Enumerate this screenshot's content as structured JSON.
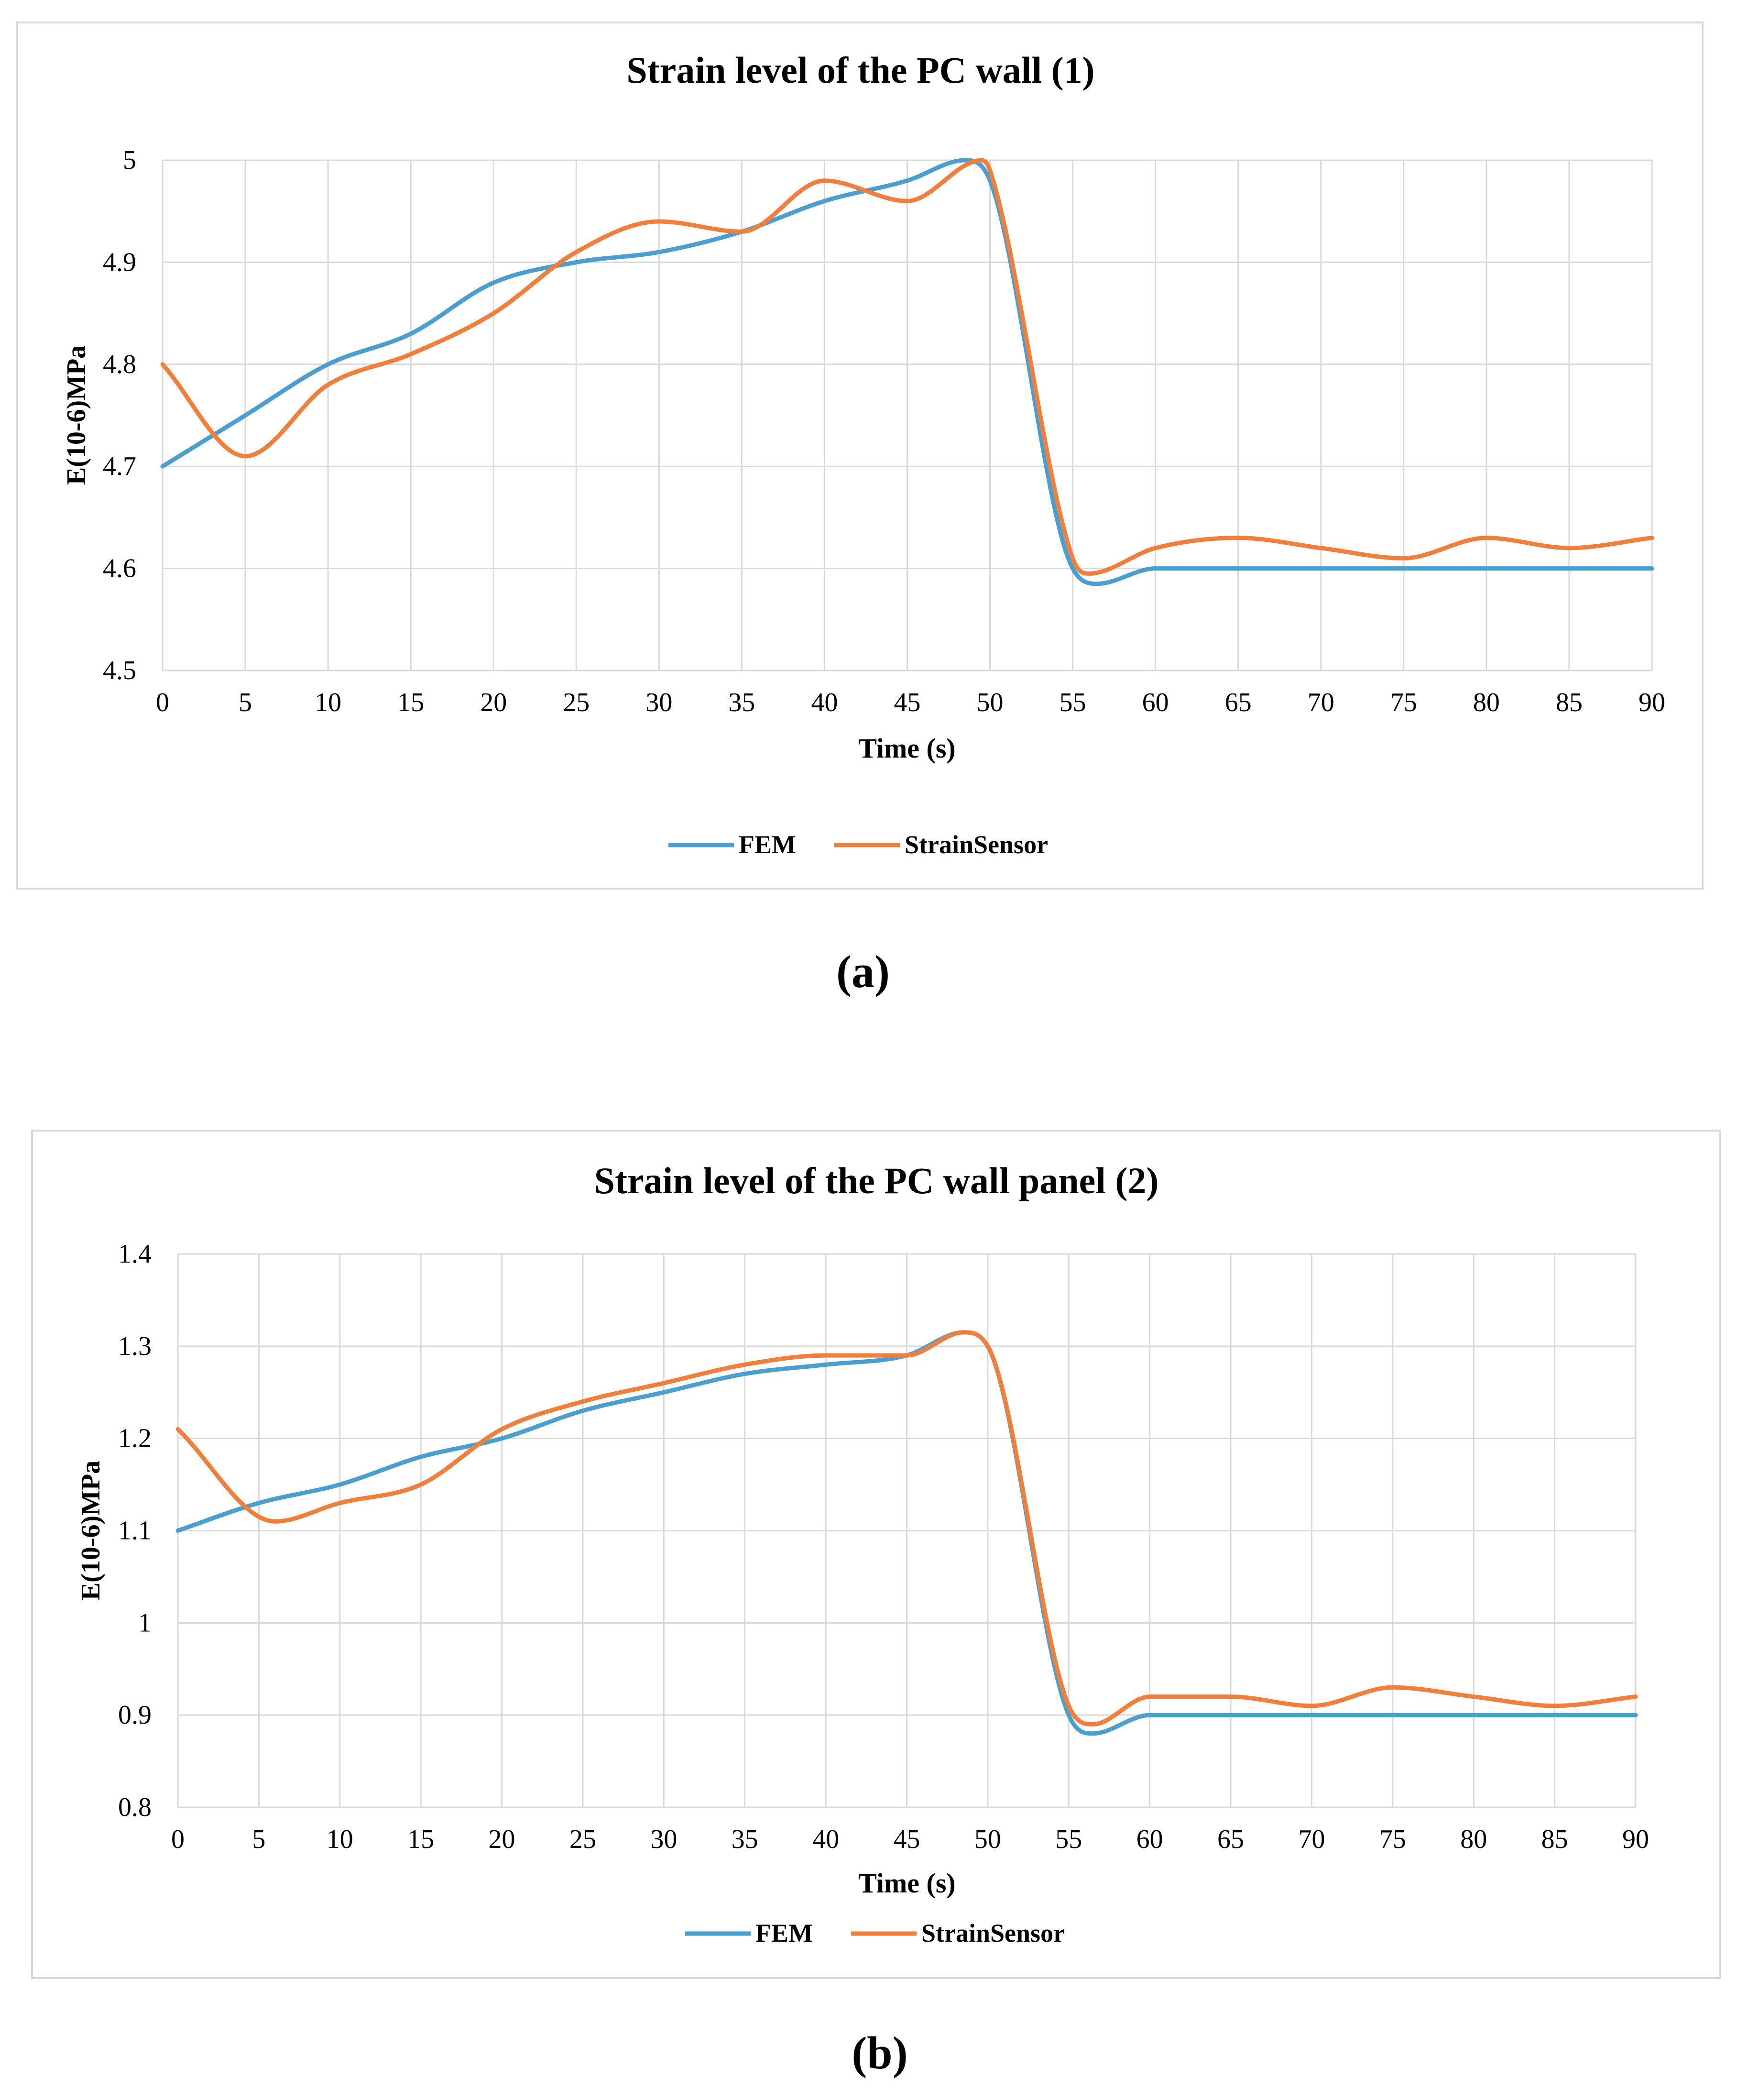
{
  "colors": {
    "fem": "#4a9fd0",
    "strain_sensor": "#f07f3c",
    "grid": "#d9d9d9",
    "frame": "#d9d9d9",
    "text": "#000000"
  },
  "chart_data": [
    {
      "type": "line",
      "title": "Strain level of the PC wall (1)",
      "xlabel": "Time (s)",
      "ylabel": "E(10-6)MPa",
      "caption": "(a)",
      "xlim": [
        0,
        90
      ],
      "ylim": [
        4.5,
        5
      ],
      "x_ticks": [
        "0",
        "5",
        "10",
        "15",
        "20",
        "25",
        "30",
        "35",
        "40",
        "45",
        "50",
        "55",
        "60",
        "65",
        "70",
        "75",
        "80",
        "85",
        "90"
      ],
      "y_ticks": [
        "4.5",
        "4.6",
        "4.7",
        "4.8",
        "4.9",
        "5"
      ],
      "grid": true,
      "legend_position": "bottom",
      "series": [
        {
          "name": "FEM",
          "color": "#4a9fd0",
          "x": [
            0,
            5,
            10,
            15,
            20,
            25,
            30,
            35,
            40,
            45,
            48.5,
            50,
            55,
            56.5,
            60,
            65,
            70,
            75,
            80,
            85,
            90
          ],
          "y": [
            4.7,
            4.75,
            4.8,
            4.83,
            4.88,
            4.9,
            4.91,
            4.93,
            4.96,
            4.98,
            5.0,
            4.98,
            4.6,
            4.585,
            4.6,
            4.6,
            4.6,
            4.6,
            4.6,
            4.6,
            4.6
          ]
        },
        {
          "name": "StrainSensor",
          "color": "#f07f3c",
          "x": [
            0,
            5,
            10,
            15,
            20,
            25,
            30,
            35,
            40,
            45,
            49.5,
            50,
            55,
            56,
            60,
            65,
            70,
            75,
            80,
            85,
            90
          ],
          "y": [
            4.8,
            4.71,
            4.78,
            4.81,
            4.85,
            4.91,
            4.94,
            4.93,
            4.98,
            4.96,
            5.0,
            4.99,
            4.61,
            4.595,
            4.62,
            4.63,
            4.62,
            4.61,
            4.63,
            4.62,
            4.63
          ]
        }
      ]
    },
    {
      "type": "line",
      "title": "Strain level of the PC wall panel (2)",
      "xlabel": "Time (s)",
      "ylabel": "E(10-6)MPa",
      "caption": "(b)",
      "xlim": [
        0,
        90
      ],
      "ylim": [
        0.8,
        1.4
      ],
      "x_ticks": [
        "0",
        "5",
        "10",
        "15",
        "20",
        "25",
        "30",
        "35",
        "40",
        "45",
        "50",
        "55",
        "60",
        "65",
        "70",
        "75",
        "80",
        "85",
        "90"
      ],
      "y_ticks": [
        "0.8",
        "0.9",
        "1",
        "1.1",
        "1.2",
        "1.3",
        "1.4"
      ],
      "grid": true,
      "legend_position": "bottom",
      "series": [
        {
          "name": "FEM",
          "color": "#4a9fd0",
          "x": [
            0,
            5,
            10,
            15,
            20,
            25,
            30,
            35,
            40,
            45,
            48.5,
            50,
            55,
            56.5,
            60,
            65,
            70,
            75,
            80,
            85,
            90
          ],
          "y": [
            1.1,
            1.13,
            1.15,
            1.18,
            1.2,
            1.23,
            1.25,
            1.27,
            1.28,
            1.29,
            1.315,
            1.3,
            0.9,
            0.88,
            0.9,
            0.9,
            0.9,
            0.9,
            0.9,
            0.9,
            0.9
          ]
        },
        {
          "name": "StrainSensor",
          "color": "#f07f3c",
          "x": [
            0,
            6,
            10,
            15,
            20,
            25,
            30,
            35,
            40,
            45,
            48.5,
            50,
            55,
            56.5,
            60,
            65,
            70,
            75,
            80,
            85,
            90
          ],
          "y": [
            1.21,
            1.11,
            1.13,
            1.15,
            1.21,
            1.24,
            1.26,
            1.28,
            1.29,
            1.29,
            1.315,
            1.3,
            0.91,
            0.89,
            0.92,
            0.92,
            0.91,
            0.93,
            0.92,
            0.91,
            0.92
          ]
        }
      ]
    }
  ]
}
